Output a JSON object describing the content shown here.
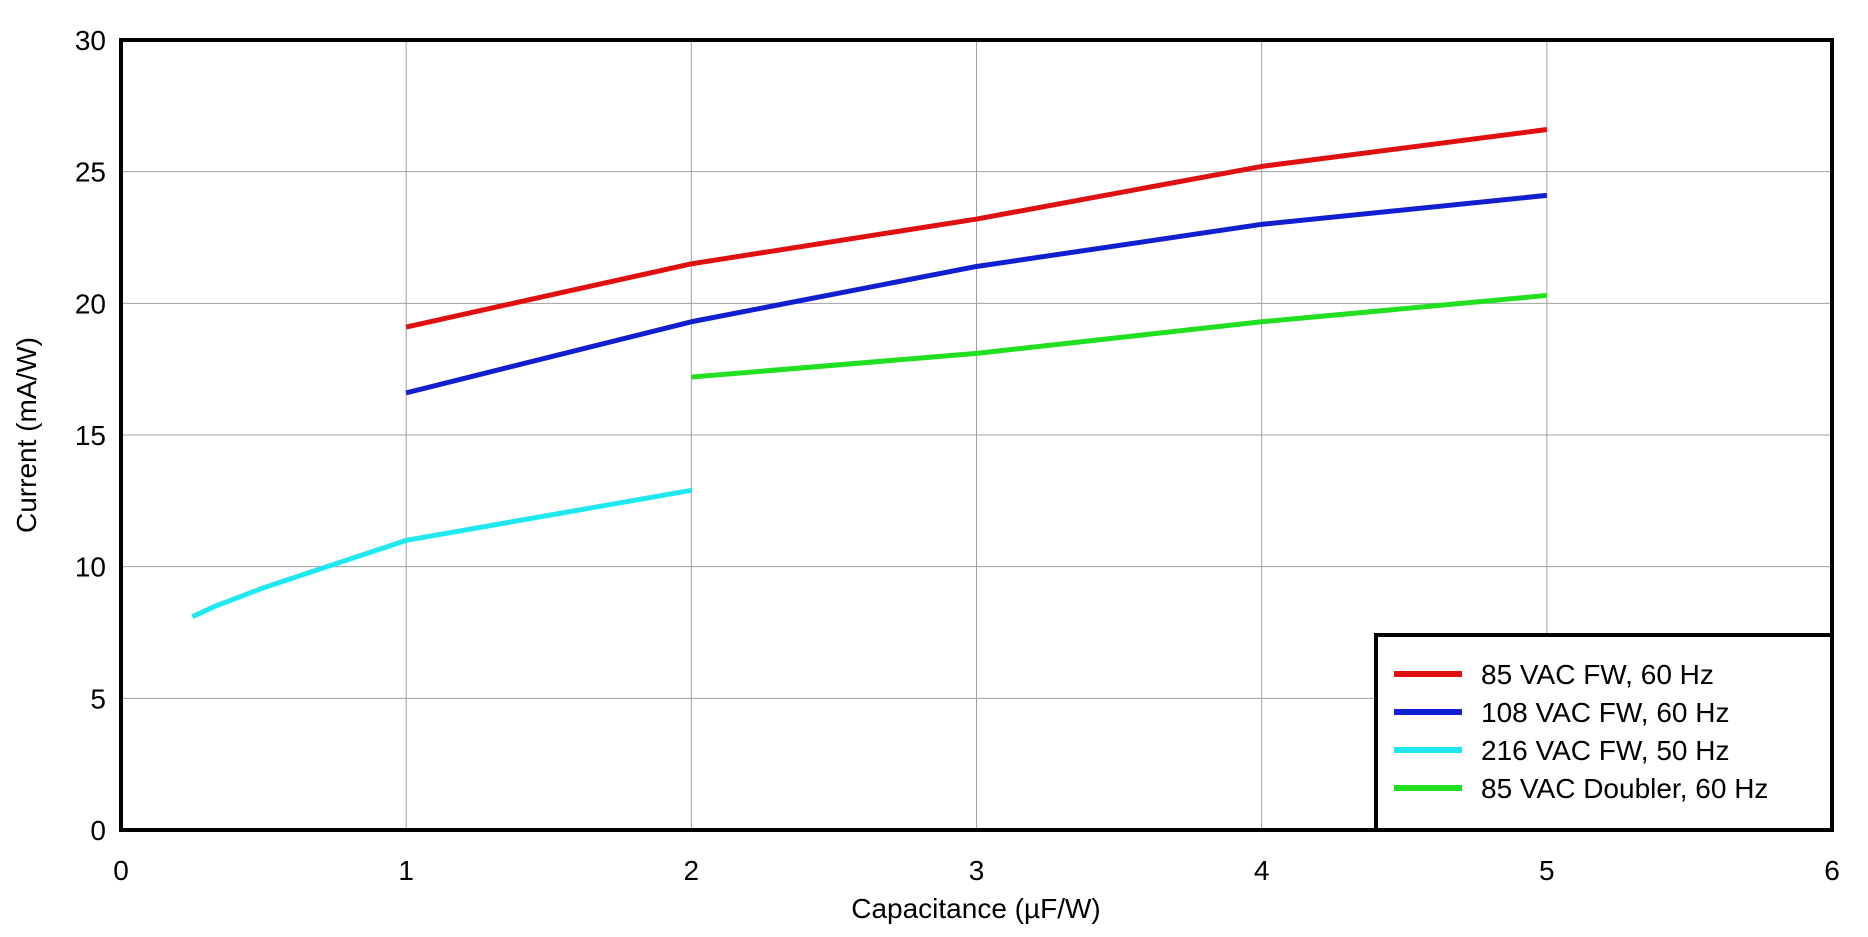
{
  "chart_data": {
    "type": "line",
    "title": "",
    "xlabel": "Capacitance (µF/W)",
    "ylabel": "Current (mA/W)",
    "xlim": [
      0,
      6
    ],
    "ylim": [
      0,
      30
    ],
    "xticks": [
      0,
      1,
      2,
      3,
      4,
      5,
      6
    ],
    "yticks": [
      0,
      5,
      10,
      15,
      20,
      25,
      30
    ],
    "grid": true,
    "legend_position": "bottom-right",
    "series": [
      {
        "name": "85 VAC FW, 60 Hz",
        "color": "#e01010",
        "x": [
          1,
          2,
          3,
          4,
          5
        ],
        "y": [
          19.1,
          21.5,
          23.2,
          25.2,
          26.6
        ]
      },
      {
        "name": "108 VAC FW, 60 Hz",
        "color": "#1020d0",
        "x": [
          1,
          2,
          3,
          4,
          5
        ],
        "y": [
          16.6,
          19.3,
          21.4,
          23.0,
          24.1
        ]
      },
      {
        "name": "216 VAC FW, 50 Hz",
        "color": "#20e8f0",
        "x": [
          0.25,
          0.33,
          0.5,
          0.75,
          1,
          2
        ],
        "y": [
          8.1,
          8.5,
          9.2,
          10.1,
          11.0,
          12.9
        ]
      },
      {
        "name": "85 VAC Doubler, 60 Hz",
        "color": "#20e020",
        "x": [
          2,
          3,
          4,
          5
        ],
        "y": [
          17.2,
          18.1,
          19.3,
          20.3
        ]
      }
    ]
  }
}
